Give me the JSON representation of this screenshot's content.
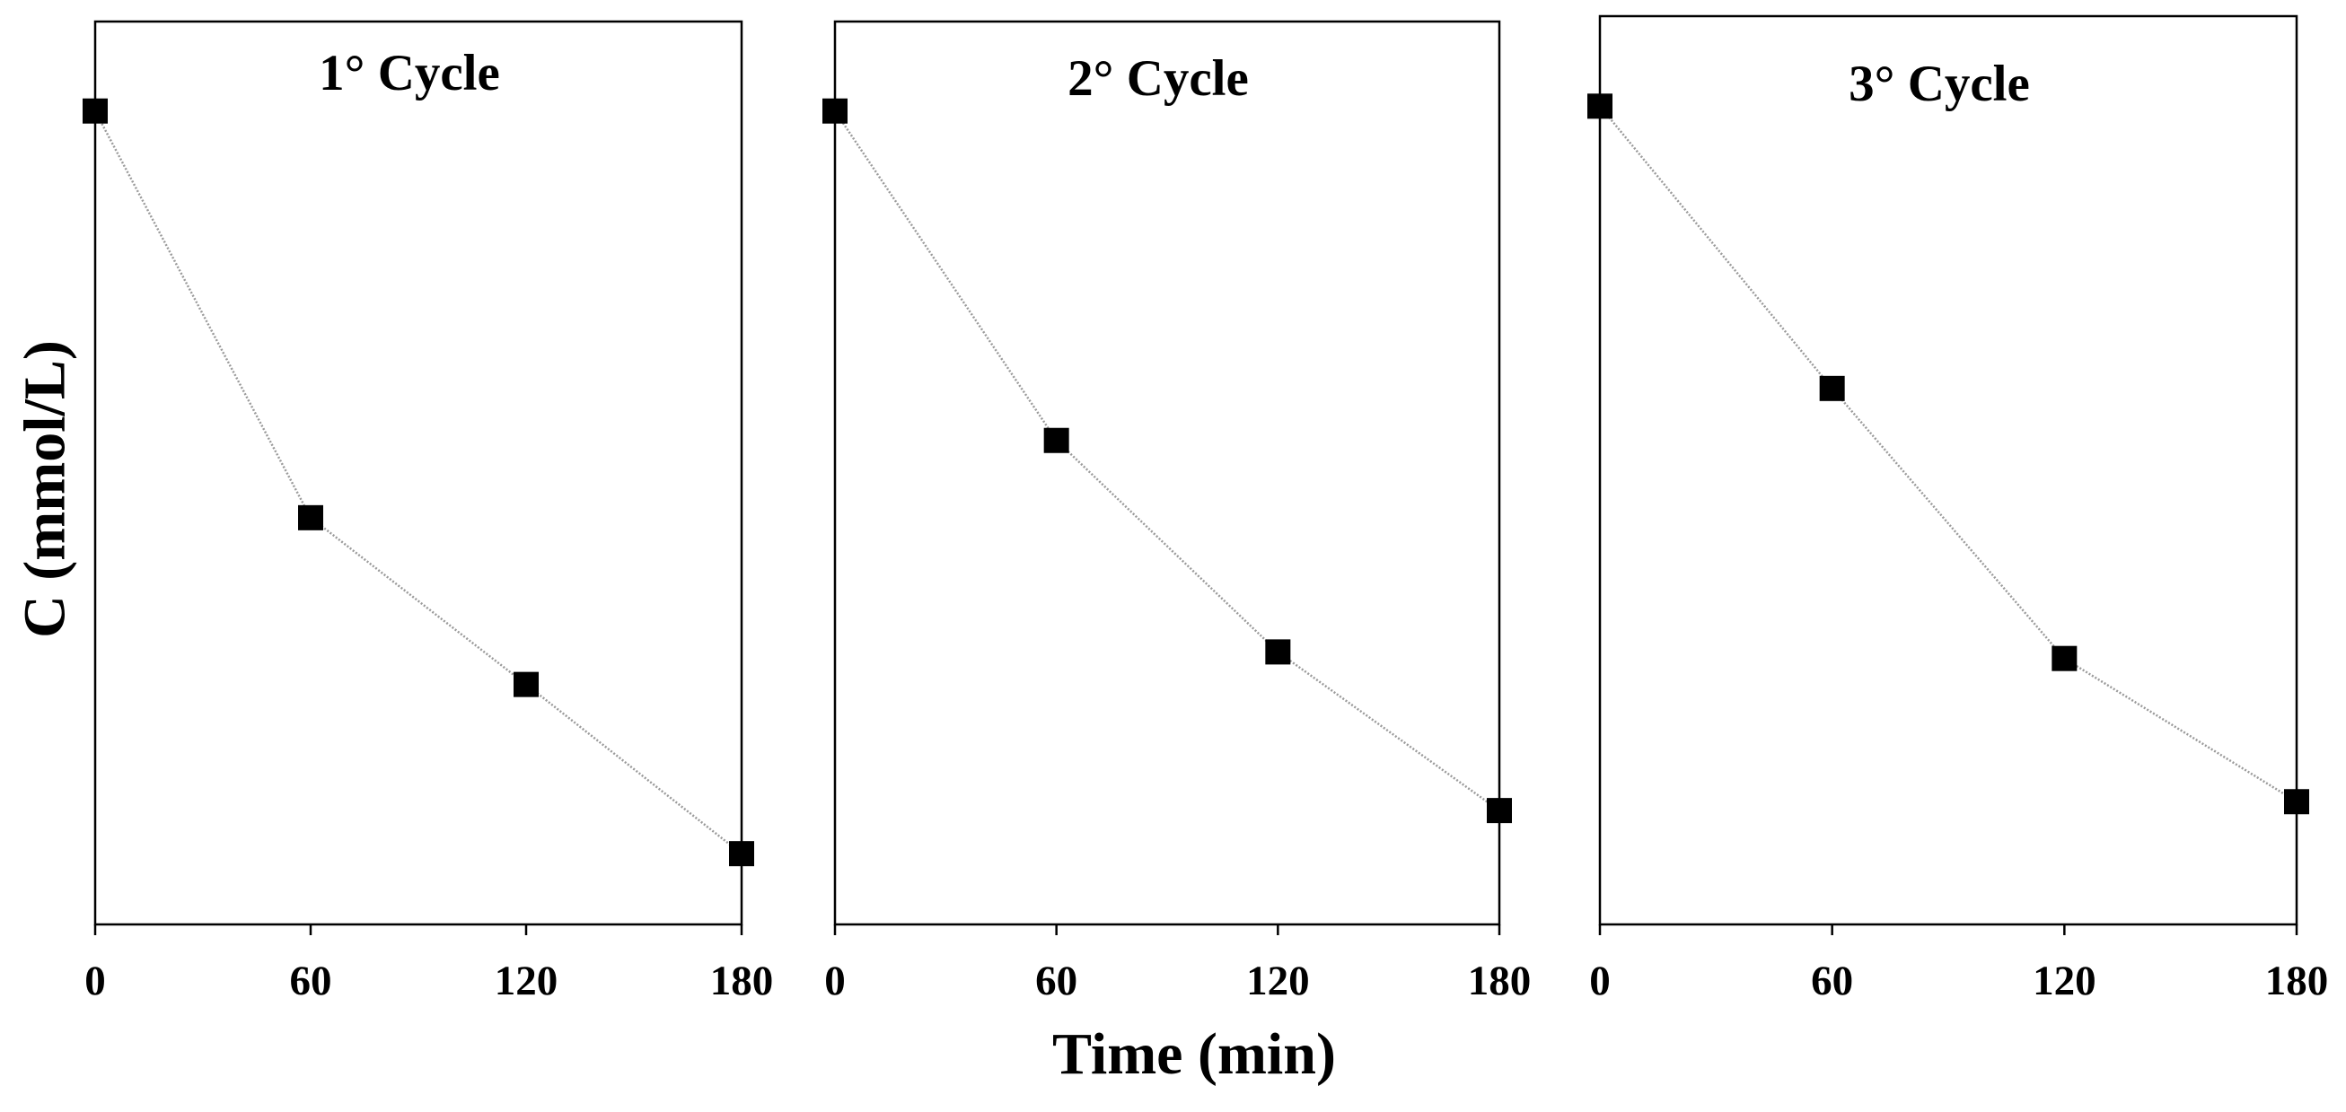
{
  "figure": {
    "ylabel": "C (mmol/L)",
    "xlabel": "Time (min)"
  },
  "chart_data": [
    {
      "type": "line",
      "title": "1° Cycle",
      "x": [
        0,
        60,
        120,
        180
      ],
      "y": [
        1.0,
        0.5,
        0.295,
        0.087
      ],
      "xlim": [
        0,
        180
      ],
      "ylim": [
        0,
        1.11
      ],
      "xticks": [
        0,
        60,
        120,
        180
      ],
      "xlabel": "Time (min)",
      "ylabel": "C (mmol/L)",
      "y_tick_labels_shown": false,
      "marker": "square",
      "colors": {
        "marker": "#000000",
        "line": "#9a9a9a"
      }
    },
    {
      "type": "line",
      "title": "2° Cycle",
      "x": [
        0,
        60,
        120,
        180
      ],
      "y": [
        1.0,
        0.595,
        0.335,
        0.14
      ],
      "xlim": [
        0,
        180
      ],
      "ylim": [
        0,
        1.11
      ],
      "xticks": [
        0,
        60,
        120,
        180
      ],
      "xlabel": "Time (min)",
      "ylabel": "C (mmol/L)",
      "y_tick_labels_shown": false,
      "marker": "square",
      "colors": {
        "marker": "#000000",
        "line": "#9a9a9a"
      }
    },
    {
      "type": "line",
      "title": "3° Cycle",
      "x": [
        0,
        60,
        120,
        180
      ],
      "y": [
        1.0,
        0.655,
        0.325,
        0.15
      ],
      "xlim": [
        0,
        180
      ],
      "ylim": [
        0,
        1.11
      ],
      "xticks": [
        0,
        60,
        120,
        180
      ],
      "xlabel": "Time (min)",
      "ylabel": "C (mmol/L)",
      "y_tick_labels_shown": false,
      "marker": "square",
      "colors": {
        "marker": "#000000",
        "line": "#9a9a9a"
      }
    }
  ]
}
